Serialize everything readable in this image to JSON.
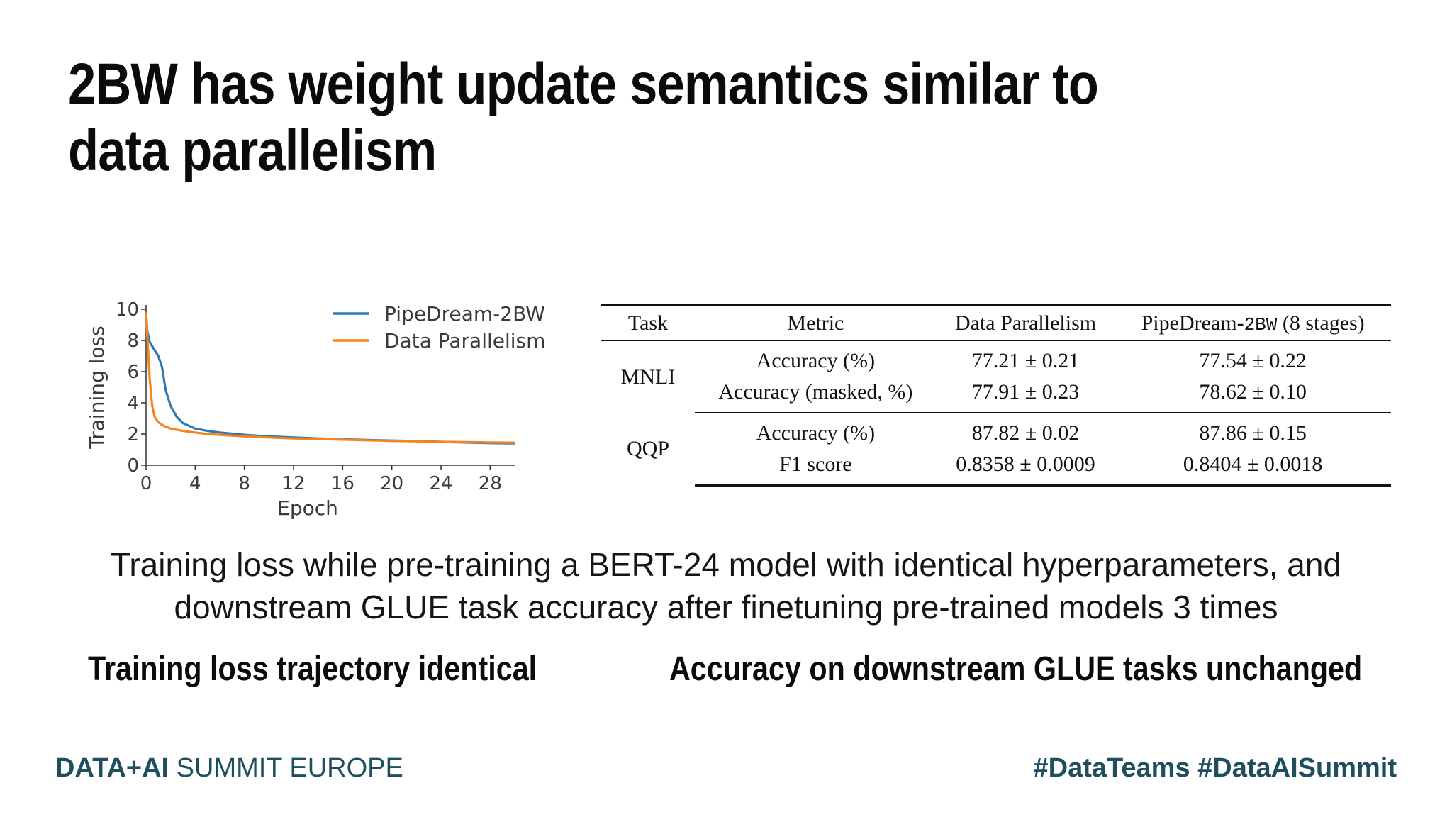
{
  "slide": {
    "title": "2BW has weight update semantics similar to data parallelism",
    "caption": "Training loss while pre-training a BERT-24 model with identical hyperparameters, and downstream GLUE task accuracy after finetuning pre-trained models 3 times",
    "subheading_left": "Training loss trajectory identical",
    "subheading_right": "Accuracy on downstream GLUE tasks unchanged"
  },
  "footer": {
    "brand_bold": "DATA+AI",
    "brand_rest": " SUMMIT EUROPE",
    "hashtags": "#DataTeams #DataAISummit"
  },
  "colors": {
    "pipedream": "#2e78b6",
    "data_parallel": "#f5841f",
    "footer": "#1f4e5f"
  },
  "chart_data": {
    "type": "line",
    "title": "",
    "xlabel": "Epoch",
    "ylabel": "Training loss",
    "xlim": [
      0,
      30
    ],
    "ylim": [
      0,
      10
    ],
    "xticks": [
      0,
      4,
      8,
      12,
      16,
      20,
      24,
      28
    ],
    "yticks": [
      0,
      2,
      4,
      6,
      8,
      10
    ],
    "grid": false,
    "legend": "top-right",
    "series": [
      {
        "name": "PipeDream-2BW",
        "color": "#2e78b6",
        "x": [
          0,
          0.1,
          0.3,
          0.6,
          1.0,
          1.3,
          1.6,
          2.0,
          2.5,
          3,
          4,
          5,
          6,
          8,
          10,
          12,
          14,
          16,
          18,
          20,
          22,
          24,
          26,
          28,
          30
        ],
        "y": [
          9.8,
          8.6,
          7.9,
          7.5,
          7.0,
          6.3,
          4.8,
          3.8,
          3.1,
          2.7,
          2.35,
          2.2,
          2.1,
          1.95,
          1.85,
          1.78,
          1.72,
          1.67,
          1.62,
          1.58,
          1.55,
          1.5,
          1.46,
          1.42,
          1.4
        ]
      },
      {
        "name": "Data Parallelism",
        "color": "#f5841f",
        "x": [
          0,
          0.1,
          0.3,
          0.5,
          0.7,
          1.0,
          1.5,
          2,
          3,
          4,
          5,
          6,
          8,
          10,
          12,
          14,
          16,
          18,
          20,
          22,
          24,
          26,
          28,
          30
        ],
        "y": [
          9.8,
          8.3,
          5.5,
          3.8,
          3.1,
          2.75,
          2.5,
          2.35,
          2.2,
          2.1,
          2.0,
          1.95,
          1.85,
          1.78,
          1.72,
          1.68,
          1.64,
          1.6,
          1.56,
          1.53,
          1.5,
          1.48,
          1.46,
          1.45
        ]
      }
    ]
  },
  "table": {
    "headers": [
      "Task",
      "Metric",
      "Data Parallelism",
      "PipeDream-",
      "2BW",
      " (8 stages)"
    ],
    "groups": [
      {
        "task": "MNLI",
        "rows": [
          {
            "metric": "Accuracy (%)",
            "dp": "77.21 ± 0.21",
            "pd": "77.54 ± 0.22"
          },
          {
            "metric": "Accuracy (masked, %)",
            "dp": "77.91 ± 0.23",
            "pd": "78.62 ± 0.10"
          }
        ]
      },
      {
        "task": "QQP",
        "rows": [
          {
            "metric": "Accuracy (%)",
            "dp": "87.82 ± 0.02",
            "pd": "87.86 ± 0.15"
          },
          {
            "metric": "F1 score",
            "dp": "0.8358 ± 0.0009",
            "pd": "0.8404 ± 0.0018"
          }
        ]
      }
    ]
  }
}
